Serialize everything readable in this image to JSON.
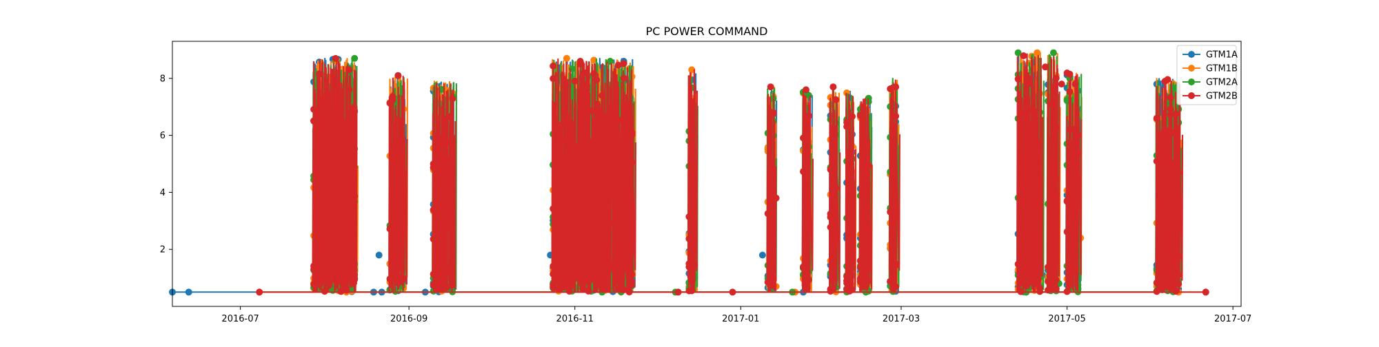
{
  "chart_data": {
    "type": "line",
    "title": "PC POWER COMMAND",
    "xlabel": "",
    "ylabel": "",
    "x_axis": {
      "type": "date",
      "range": [
        "2016-06-06",
        "2017-07-04"
      ],
      "ticks": [
        "2016-07-01",
        "2016-09-01",
        "2016-11-01",
        "2017-01-01",
        "2017-03-01",
        "2017-05-01",
        "2017-07-01"
      ],
      "tick_labels": [
        "2016-07",
        "2016-09",
        "2016-11",
        "2017-01",
        "2017-03",
        "2017-05",
        "2017-07"
      ]
    },
    "y_axis": {
      "range": [
        0.0,
        9.3
      ],
      "ticks": [
        2,
        4,
        6,
        8
      ],
      "tick_labels": [
        "2",
        "4",
        "6",
        "8"
      ]
    },
    "grid": false,
    "legend_position": "top-right",
    "marker": "circle",
    "baseline_value": 0.5,
    "operating_periods": [
      {
        "start": "2016-07-28",
        "end": "2016-08-13",
        "peak": 8.7
      },
      {
        "start": "2016-08-25",
        "end": "2016-08-31",
        "peak": 8.1
      },
      {
        "start": "2016-09-10",
        "end": "2016-09-18",
        "peak": 7.9
      },
      {
        "start": "2016-10-24",
        "end": "2016-11-23",
        "peak": 8.7
      },
      {
        "start": "2016-12-13",
        "end": "2016-12-16",
        "peak": 8.3
      },
      {
        "start": "2017-01-11",
        "end": "2017-01-14",
        "peak": 7.7
      },
      {
        "start": "2017-01-24",
        "end": "2017-01-27",
        "peak": 7.6
      },
      {
        "start": "2017-02-03",
        "end": "2017-02-06",
        "peak": 7.7
      },
      {
        "start": "2017-02-09",
        "end": "2017-02-12",
        "peak": 7.6
      },
      {
        "start": "2017-02-14",
        "end": "2017-02-18",
        "peak": 7.3
      },
      {
        "start": "2017-02-25",
        "end": "2017-02-28",
        "peak": 8.0
      },
      {
        "start": "2017-04-13",
        "end": "2017-04-22",
        "peak": 8.9
      },
      {
        "start": "2017-04-24",
        "end": "2017-04-28",
        "peak": 8.9
      },
      {
        "start": "2017-05-01",
        "end": "2017-05-06",
        "peak": 8.2
      },
      {
        "start": "2017-06-03",
        "end": "2017-06-12",
        "peak": 8.0
      }
    ],
    "series": [
      {
        "name": "GTM1A",
        "color": "#1f77b4",
        "points": [
          {
            "x": "2016-06-06",
            "y": 0.5
          },
          {
            "x": "2016-06-12",
            "y": 0.5
          },
          {
            "x": "2016-08-19",
            "y": 0.5
          },
          {
            "x": "2016-08-21",
            "y": 1.8
          },
          {
            "x": "2016-08-22",
            "y": 0.5
          },
          {
            "x": "2016-09-07",
            "y": 0.5
          },
          {
            "x": "2016-10-23",
            "y": 1.8
          },
          {
            "x": "2016-11-19",
            "y": 8.6
          },
          {
            "x": "2017-01-09",
            "y": 1.8
          },
          {
            "x": "2017-01-13",
            "y": 4.4
          },
          {
            "x": "2017-01-24",
            "y": 0.5
          },
          {
            "x": "2017-02-16",
            "y": 6.6
          },
          {
            "x": "2017-04-22",
            "y": 1.1
          },
          {
            "x": "2017-04-24",
            "y": 7.5
          },
          {
            "x": "2017-06-03",
            "y": 7.8
          }
        ]
      },
      {
        "name": "GTM1B",
        "color": "#ff7f0e",
        "points": [
          {
            "x": "2016-07-08",
            "y": 0.5
          },
          {
            "x": "2016-08-05",
            "y": 8.6
          },
          {
            "x": "2016-10-29",
            "y": 8.7
          },
          {
            "x": "2016-12-14",
            "y": 8.3
          },
          {
            "x": "2017-01-14",
            "y": 0.7
          },
          {
            "x": "2017-01-21",
            "y": 0.5
          },
          {
            "x": "2017-02-10",
            "y": 7.1
          },
          {
            "x": "2017-04-20",
            "y": 8.9
          },
          {
            "x": "2017-05-06",
            "y": 2.4
          },
          {
            "x": "2017-06-03",
            "y": 0.7
          },
          {
            "x": "2017-06-21",
            "y": 0.5
          }
        ]
      },
      {
        "name": "GTM2A",
        "color": "#2ca02c",
        "points": [
          {
            "x": "2016-08-12",
            "y": 8.7
          },
          {
            "x": "2016-11-14",
            "y": 8.6
          },
          {
            "x": "2016-12-08",
            "y": 0.5
          },
          {
            "x": "2017-01-13",
            "y": 4.2
          },
          {
            "x": "2017-01-20",
            "y": 0.5
          },
          {
            "x": "2017-02-17",
            "y": 7.3
          },
          {
            "x": "2017-04-13",
            "y": 8.9
          },
          {
            "x": "2017-04-26",
            "y": 8.9
          },
          {
            "x": "2017-04-28",
            "y": 0.8
          },
          {
            "x": "2017-05-02",
            "y": 8.0
          },
          {
            "x": "2017-06-09",
            "y": 7.4
          }
        ]
      },
      {
        "name": "GTM2B",
        "color": "#d62728",
        "points": [
          {
            "x": "2016-07-08",
            "y": 0.5
          },
          {
            "x": "2016-08-10",
            "y": 8.3
          },
          {
            "x": "2016-08-28",
            "y": 8.1
          },
          {
            "x": "2016-11-03",
            "y": 8.6
          },
          {
            "x": "2016-12-09",
            "y": 0.5
          },
          {
            "x": "2016-12-29",
            "y": 0.5
          },
          {
            "x": "2017-01-12",
            "y": 7.7
          },
          {
            "x": "2017-01-14",
            "y": 3.8
          },
          {
            "x": "2017-01-25",
            "y": 7.6
          },
          {
            "x": "2017-02-04",
            "y": 7.7
          },
          {
            "x": "2017-02-27",
            "y": 7.7
          },
          {
            "x": "2017-04-23",
            "y": 8.4
          },
          {
            "x": "2017-04-29",
            "y": 7.8
          },
          {
            "x": "2017-05-04",
            "y": 7.8
          },
          {
            "x": "2017-06-06",
            "y": 7.9
          },
          {
            "x": "2017-06-21",
            "y": 0.5
          }
        ]
      }
    ]
  }
}
